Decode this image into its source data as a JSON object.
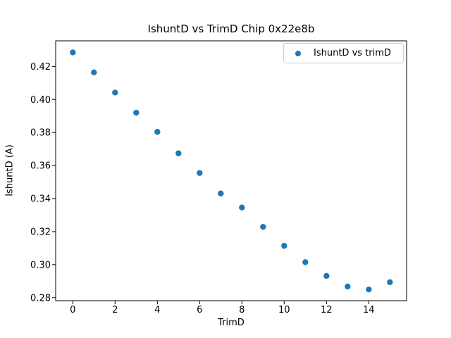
{
  "chart_data": {
    "type": "scatter",
    "title": "IshuntD vs TrimD Chip 0x22e8b",
    "xlabel": "TrimD",
    "ylabel": "IshuntD (A)",
    "legend": {
      "labels": [
        "IshuntD vs trimD"
      ],
      "position": "upper right"
    },
    "series": [
      {
        "name": "IshuntD vs trimD",
        "marker": "circle",
        "color": "#1f77b4",
        "x": [
          0,
          1,
          2,
          3,
          4,
          5,
          6,
          7,
          8,
          9,
          10,
          11,
          12,
          13,
          14,
          15
        ],
        "y": [
          0.4285,
          0.4164,
          0.4042,
          0.392,
          0.3804,
          0.3674,
          0.3555,
          0.3431,
          0.3346,
          0.3229,
          0.3114,
          0.3015,
          0.2932,
          0.2868,
          0.285,
          0.2894
        ]
      }
    ],
    "xlim": [
      -0.81,
      15.79
    ],
    "ylim": [
      0.2782,
      0.4355
    ],
    "xticks": [
      0,
      2,
      4,
      6,
      8,
      10,
      12,
      14
    ],
    "yticks": [
      0.28,
      0.3,
      0.32,
      0.34,
      0.36,
      0.38,
      0.4,
      0.42
    ],
    "grid": false,
    "background": "#ffffff",
    "text_color": "#000000"
  }
}
